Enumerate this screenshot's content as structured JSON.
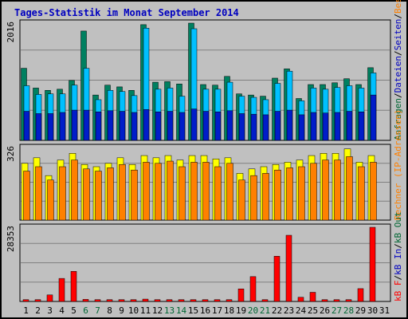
{
  "title": "Tages-Statistik im Monat September 2014",
  "chart_data": [
    {
      "panel": "top",
      "type": "bar",
      "y_max_label": "2016",
      "ylim": [
        0,
        2016
      ],
      "legend": [
        {
          "text": "Anfragen",
          "color": "#006633"
        },
        {
          "text": "/",
          "color": "#000000"
        },
        {
          "text": "Dateien",
          "color": "#0000c0"
        },
        {
          "text": "/",
          "color": "#000000"
        },
        {
          "text": "Seiten",
          "color": "#0000c0"
        },
        {
          "text": "/",
          "color": "#000000"
        },
        {
          "text": "Besuche",
          "color": "#ff8000"
        }
      ],
      "categories": [
        "1",
        "2",
        "3",
        "4",
        "5",
        "6",
        "7",
        "8",
        "9",
        "10",
        "11",
        "12",
        "13",
        "14",
        "15",
        "16",
        "17",
        "18",
        "19",
        "20",
        "21",
        "22",
        "23",
        "24",
        "25",
        "26",
        "27",
        "28",
        "29",
        "30",
        "31"
      ],
      "series": [
        {
          "name": "Anfragen",
          "color": "#008060",
          "values": [
            1240,
            900,
            860,
            880,
            1030,
            1880,
            780,
            950,
            920,
            860,
            1990,
            1000,
            1010,
            970,
            2016,
            960,
            950,
            1100,
            800,
            780,
            760,
            1070,
            1230,
            720,
            960,
            960,
            990,
            1060,
            960,
            1250,
            0
          ]
        },
        {
          "name": "Dateien",
          "color": "#00c0ff",
          "values": [
            940,
            790,
            800,
            800,
            950,
            1240,
            700,
            860,
            840,
            770,
            1930,
            880,
            900,
            760,
            1920,
            880,
            880,
            1000,
            760,
            740,
            700,
            980,
            1190,
            680,
            900,
            880,
            910,
            940,
            900,
            1160,
            0
          ]
        },
        {
          "name": "Seiten",
          "color": "#0000c0",
          "values": [
            500,
            460,
            460,
            480,
            520,
            520,
            490,
            510,
            500,
            480,
            530,
            490,
            500,
            480,
            540,
            500,
            490,
            510,
            460,
            450,
            440,
            500,
            520,
            440,
            480,
            470,
            480,
            500,
            490,
            780,
            0
          ]
        }
      ]
    },
    {
      "panel": "middle",
      "type": "bar",
      "y_max_label": "326",
      "ylim": [
        0,
        326
      ],
      "legend": [
        {
          "text": "Rechner (IP-Adressen)",
          "color": "#ff8000"
        }
      ],
      "categories": [
        "1",
        "2",
        "3",
        "4",
        "5",
        "6",
        "7",
        "8",
        "9",
        "10",
        "11",
        "12",
        "13",
        "14",
        "15",
        "16",
        "17",
        "18",
        "19",
        "20",
        "21",
        "22",
        "23",
        "24",
        "25",
        "26",
        "27",
        "28",
        "29",
        "30",
        "31"
      ],
      "series": [
        {
          "name": "Rechner",
          "color": "#ffff00",
          "values": [
            255,
            280,
            200,
            270,
            300,
            250,
            240,
            255,
            280,
            250,
            290,
            280,
            290,
            270,
            290,
            290,
            275,
            280,
            210,
            230,
            240,
            250,
            260,
            270,
            290,
            300,
            300,
            320,
            260,
            290,
            0
          ]
        },
        {
          "name": "Besuche",
          "color": "#ff8000",
          "values": [
            220,
            240,
            180,
            240,
            270,
            230,
            220,
            235,
            250,
            225,
            260,
            255,
            265,
            240,
            260,
            260,
            240,
            255,
            180,
            200,
            210,
            225,
            235,
            240,
            255,
            270,
            270,
            285,
            240,
            260,
            0
          ]
        }
      ]
    },
    {
      "panel": "bottom",
      "type": "bar",
      "y_max_label": "28353",
      "ylim": [
        0,
        28353
      ],
      "legend": [
        {
          "text": "kB F",
          "color": "#ff0000"
        },
        {
          "text": "/",
          "color": "#000000"
        },
        {
          "text": "kB In",
          "color": "#0000c0"
        },
        {
          "text": "/",
          "color": "#000000"
        },
        {
          "text": "kB Out",
          "color": "#006633"
        }
      ],
      "categories": [
        "1",
        "2",
        "3",
        "4",
        "5",
        "6",
        "7",
        "8",
        "9",
        "10",
        "11",
        "12",
        "13",
        "14",
        "15",
        "16",
        "17",
        "18",
        "19",
        "20",
        "21",
        "22",
        "23",
        "24",
        "25",
        "26",
        "27",
        "28",
        "29",
        "30",
        "31"
      ],
      "series": [
        {
          "name": "kB F",
          "color": "#ff0000",
          "values": [
            700,
            700,
            2500,
            8800,
            11500,
            800,
            700,
            700,
            700,
            700,
            900,
            700,
            700,
            700,
            700,
            700,
            700,
            700,
            4800,
            9500,
            700,
            17300,
            25300,
            1600,
            3500,
            700,
            700,
            700,
            4900,
            28353,
            0
          ]
        }
      ]
    }
  ],
  "weekend_days": [
    6,
    7,
    13,
    14,
    20,
    21,
    27,
    28
  ],
  "day_color_normal": "#000000",
  "day_color_weekend": "#006633"
}
